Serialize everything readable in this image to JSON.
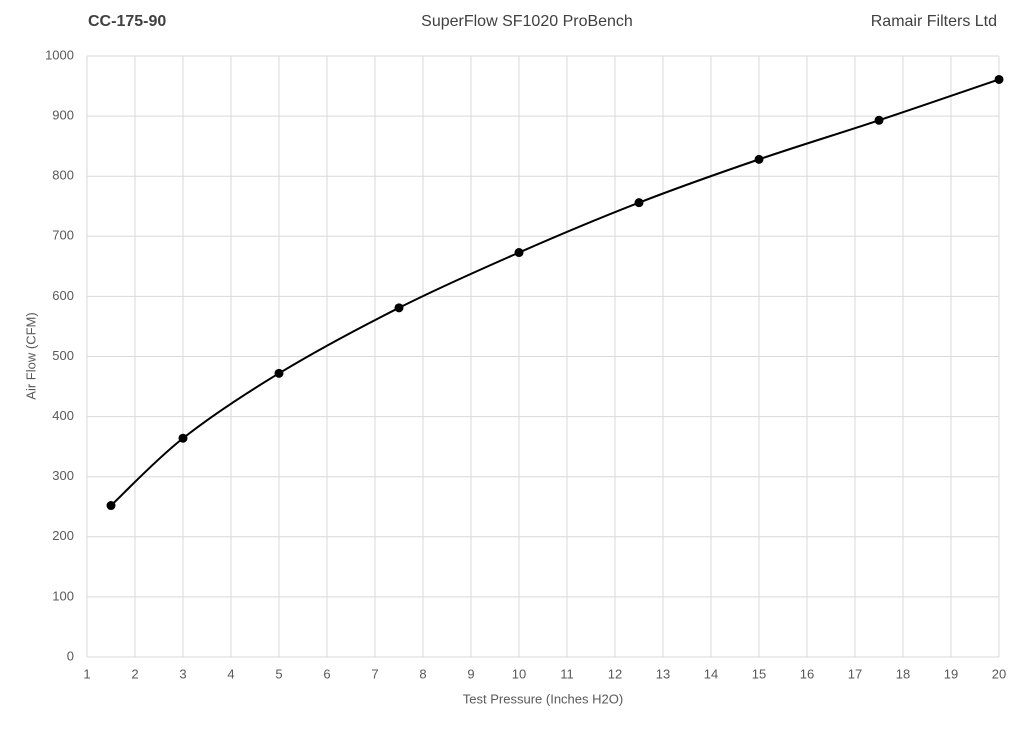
{
  "chart_data": {
    "type": "line",
    "title": "SuperFlow SF1020 ProBench",
    "header_left": "CC-175-90",
    "header_right": "Ramair Filters Ltd",
    "x_label": "Test Pressure (Inches H2O)",
    "y_label": "Air Flow (CFM)",
    "x": [
      1.5,
      3,
      5,
      7.5,
      10,
      12.5,
      15,
      17.5,
      20
    ],
    "series": [
      {
        "color": "#000000",
        "values": [
          252,
          364,
          472,
          581,
          673,
          756,
          828,
          893,
          961
        ]
      }
    ],
    "smooth": true,
    "xlim": [
      1,
      20
    ],
    "xticks": [
      1,
      2,
      3,
      4,
      5,
      6,
      7,
      8,
      9,
      10,
      11,
      12,
      13,
      14,
      15,
      16,
      17,
      18,
      19,
      20
    ],
    "ylim": [
      0,
      1000
    ],
    "yticks": [
      0,
      100,
      200,
      300,
      400,
      500,
      600,
      700,
      800,
      900,
      1000
    ],
    "grid": true
  }
}
